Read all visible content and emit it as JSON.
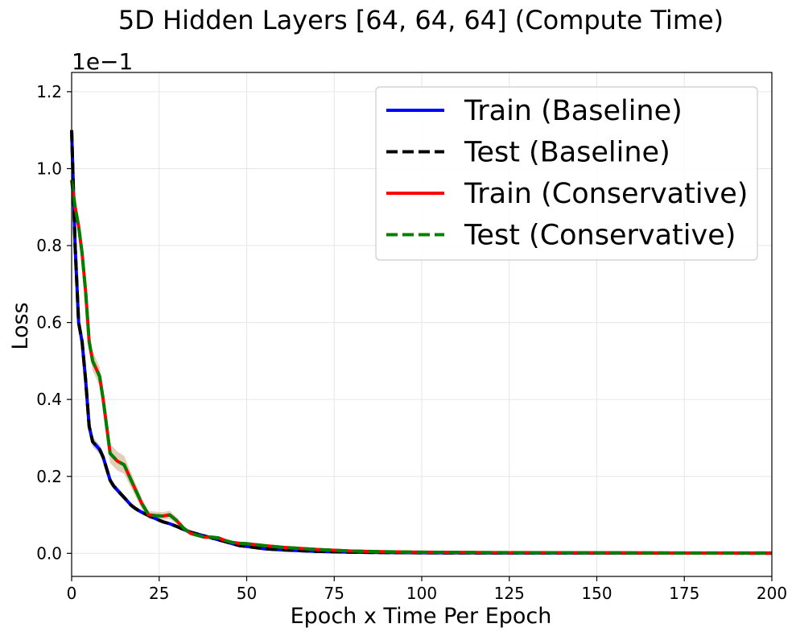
{
  "chart_data": {
    "type": "line",
    "title": "5D Hidden Layers [64, 64, 64] (Compute Time)",
    "xlabel": "Epoch x Time Per Epoch",
    "ylabel": "Loss",
    "y_offset_label": "1e−1",
    "xlim": [
      0,
      200
    ],
    "ylim": [
      -0.06,
      1.25
    ],
    "x_ticks": [
      0,
      25,
      50,
      75,
      100,
      125,
      150,
      175,
      200
    ],
    "x_tick_labels": [
      "0",
      "25",
      "50",
      "75",
      "100",
      "125",
      "150",
      "175",
      "200"
    ],
    "y_ticks": [
      0.0,
      0.2,
      0.4,
      0.6,
      0.8,
      1.0,
      1.2
    ],
    "y_tick_labels": [
      "0.0",
      "0.2",
      "0.4",
      "0.6",
      "0.8",
      "1.0",
      "1.2"
    ],
    "grid": true,
    "legend_position": "top-right",
    "series": [
      {
        "name": "Train (Baseline)",
        "color": "#0000ff",
        "dash": "solid",
        "band_color": "#8a8aff",
        "x": [
          0,
          1,
          2,
          3,
          4,
          5,
          6,
          7,
          8,
          9,
          10,
          11,
          12,
          13,
          14,
          15,
          16,
          17,
          18,
          19,
          20,
          22,
          24,
          26,
          28,
          30,
          32,
          34,
          36,
          38,
          40,
          42,
          44,
          46,
          48,
          50,
          55,
          60,
          65,
          70,
          75,
          80,
          90,
          100,
          120,
          150,
          175,
          200
        ],
        "y": [
          1.1,
          0.8,
          0.6,
          0.55,
          0.45,
          0.33,
          0.29,
          0.28,
          0.27,
          0.25,
          0.22,
          0.19,
          0.175,
          0.165,
          0.155,
          0.145,
          0.135,
          0.125,
          0.118,
          0.112,
          0.107,
          0.098,
          0.09,
          0.082,
          0.077,
          0.07,
          0.062,
          0.055,
          0.05,
          0.045,
          0.04,
          0.035,
          0.03,
          0.025,
          0.02,
          0.018,
          0.012,
          0.009,
          0.007,
          0.005,
          0.004,
          0.003,
          0.002,
          0.0015,
          0.001,
          0.0008,
          0.0006,
          0.0005
        ],
        "band": 0.012
      },
      {
        "name": "Test (Baseline)",
        "color": "#000000",
        "dash": "dashed",
        "x": [
          0,
          1,
          2,
          3,
          4,
          5,
          6,
          7,
          8,
          9,
          10,
          11,
          12,
          13,
          14,
          15,
          16,
          17,
          18,
          19,
          20,
          22,
          24,
          26,
          28,
          30,
          32,
          34,
          36,
          38,
          40,
          42,
          44,
          46,
          48,
          50,
          55,
          60,
          65,
          70,
          75,
          80,
          90,
          100,
          120,
          150,
          175,
          200
        ],
        "y": [
          1.1,
          0.8,
          0.6,
          0.55,
          0.45,
          0.33,
          0.29,
          0.28,
          0.27,
          0.25,
          0.22,
          0.19,
          0.175,
          0.165,
          0.155,
          0.145,
          0.135,
          0.125,
          0.118,
          0.112,
          0.107,
          0.098,
          0.09,
          0.082,
          0.077,
          0.07,
          0.062,
          0.055,
          0.05,
          0.045,
          0.04,
          0.035,
          0.03,
          0.025,
          0.02,
          0.018,
          0.012,
          0.009,
          0.007,
          0.005,
          0.004,
          0.003,
          0.002,
          0.0015,
          0.001,
          0.0008,
          0.0006,
          0.0005
        ]
      },
      {
        "name": "Train (Conservative)",
        "color": "#ff0000",
        "dash": "solid",
        "band_color": "#c8a882",
        "x": [
          0,
          1,
          2,
          3,
          4,
          5,
          6,
          7,
          8,
          9,
          10,
          11,
          12,
          13,
          14,
          15,
          16,
          17,
          18,
          19,
          20,
          22,
          24,
          26,
          28,
          30,
          32,
          34,
          36,
          38,
          40,
          42,
          44,
          46,
          48,
          50,
          55,
          60,
          65,
          70,
          75,
          80,
          90,
          100,
          120,
          150,
          175,
          200
        ],
        "y": [
          0.97,
          0.9,
          0.85,
          0.78,
          0.68,
          0.55,
          0.5,
          0.48,
          0.46,
          0.4,
          0.33,
          0.26,
          0.25,
          0.24,
          0.235,
          0.23,
          0.21,
          0.19,
          0.17,
          0.15,
          0.13,
          0.1,
          0.098,
          0.097,
          0.1,
          0.085,
          0.065,
          0.052,
          0.047,
          0.042,
          0.042,
          0.04,
          0.033,
          0.028,
          0.026,
          0.025,
          0.02,
          0.016,
          0.013,
          0.01,
          0.008,
          0.006,
          0.004,
          0.003,
          0.002,
          0.0015,
          0.001,
          0.001
        ],
        "band": 0.025
      },
      {
        "name": "Test (Conservative)",
        "color": "#008000",
        "dash": "dashed",
        "x": [
          0,
          1,
          2,
          3,
          4,
          5,
          6,
          7,
          8,
          9,
          10,
          11,
          12,
          13,
          14,
          15,
          16,
          17,
          18,
          19,
          20,
          22,
          24,
          26,
          28,
          30,
          32,
          34,
          36,
          38,
          40,
          42,
          44,
          46,
          48,
          50,
          55,
          60,
          65,
          70,
          75,
          80,
          90,
          100,
          120,
          150,
          175,
          200
        ],
        "y": [
          0.97,
          0.9,
          0.85,
          0.78,
          0.68,
          0.55,
          0.5,
          0.48,
          0.46,
          0.4,
          0.33,
          0.26,
          0.25,
          0.24,
          0.235,
          0.23,
          0.21,
          0.19,
          0.17,
          0.15,
          0.13,
          0.1,
          0.098,
          0.097,
          0.1,
          0.085,
          0.065,
          0.052,
          0.047,
          0.042,
          0.042,
          0.04,
          0.033,
          0.028,
          0.026,
          0.025,
          0.02,
          0.016,
          0.013,
          0.01,
          0.008,
          0.006,
          0.004,
          0.003,
          0.002,
          0.0015,
          0.001,
          0.001
        ]
      }
    ]
  }
}
